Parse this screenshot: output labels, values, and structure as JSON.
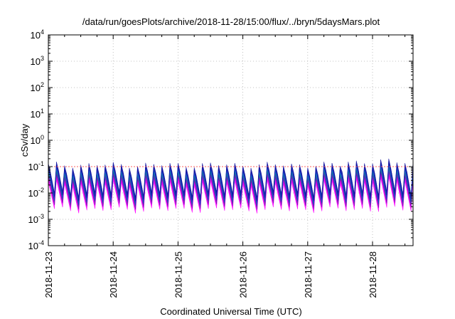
{
  "chart_data": {
    "type": "area",
    "title": "/data/run/goesPlots/archive/2018-11-28/15:00/flux/../bryn/5daysMars.plot",
    "xlabel": "Coordinated Universal Time (UTC)",
    "ylabel": "cSv/day",
    "x_range": [
      "2018-11-23",
      "2018-11-28T15:00"
    ],
    "x_ticks": [
      "2018-11-23",
      "2018-11-24",
      "2018-11-25",
      "2018-11-26",
      "2018-11-27",
      "2018-11-28"
    ],
    "y_scale": "log",
    "y_range": [
      0.0001,
      10000
    ],
    "y_ticks": [
      {
        "base": "10",
        "exp": "-4"
      },
      {
        "base": "10",
        "exp": "-3"
      },
      {
        "base": "10",
        "exp": "-2"
      },
      {
        "base": "10",
        "exp": "-1"
      },
      {
        "base": "10",
        "exp": "0"
      },
      {
        "base": "10",
        "exp": "1"
      },
      {
        "base": "10",
        "exp": "2"
      },
      {
        "base": "10",
        "exp": "3"
      },
      {
        "base": "10",
        "exp": "4"
      }
    ],
    "grid": true,
    "oscillation": {
      "periods_per_day": 8,
      "peak_value_range": [
        0.08,
        0.12
      ],
      "trough_value_range": [
        0.002,
        0.005
      ]
    },
    "series_colors": [
      "#ff00ff",
      "#dd00ee",
      "#a000c8",
      "#7020b0",
      "#008b8b",
      "#00c0c0",
      "#2040d0",
      "#1010a0"
    ],
    "threshold_color": "#ff6060"
  }
}
